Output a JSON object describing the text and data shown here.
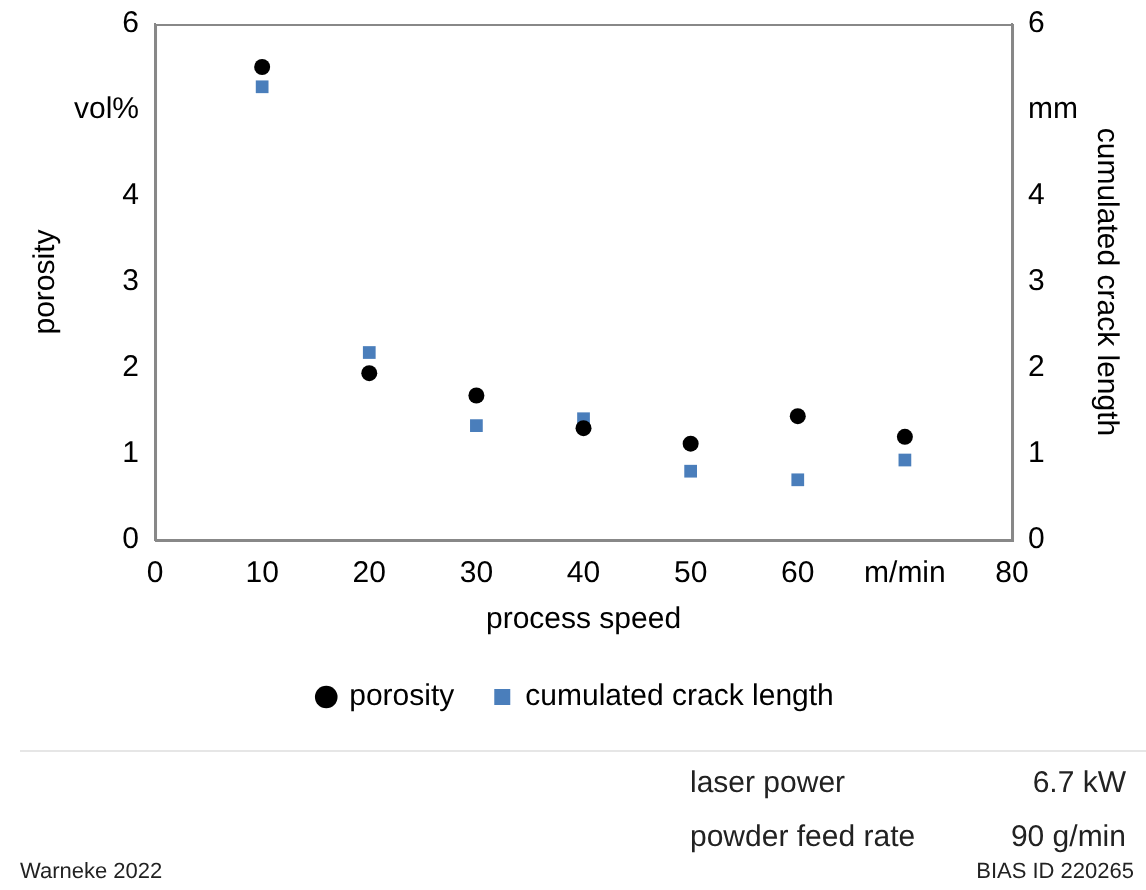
{
  "chart_data": {
    "type": "scatter",
    "xlabel": "process speed",
    "ylabel": "porosity",
    "y2label": "cumulated crack length",
    "x": [
      10,
      20,
      30,
      40,
      50,
      60,
      70
    ],
    "series": [
      {
        "name": "porosity",
        "color": "#000000",
        "marker": "circle",
        "values": [
          5.5,
          1.94,
          1.68,
          1.3,
          1.12,
          1.44,
          1.2
        ]
      },
      {
        "name": "cumulated crack length",
        "color": "#4a7ebb",
        "marker": "square",
        "axis": "y2",
        "values": [
          5.27,
          2.18,
          1.33,
          1.41,
          0.8,
          0.7,
          0.93
        ]
      }
    ],
    "xlim": [
      0,
      80
    ],
    "xticks": [
      0,
      10,
      20,
      30,
      40,
      50,
      60,
      {
        "value": 70,
        "label": "m/min"
      },
      80
    ],
    "ylim": [
      0,
      6
    ],
    "yticks": [
      0,
      1,
      2,
      3,
      4,
      {
        "value": 5,
        "label": "vol%"
      },
      6
    ],
    "y2lim": [
      0,
      6
    ],
    "y2ticks": [
      0,
      1,
      2,
      3,
      4,
      {
        "value": 5,
        "label": "mm"
      },
      6
    ],
    "legend": "bottom",
    "grid": false,
    "annotations": [
      "laser power",
      "6.7 kW",
      "powder feed rate",
      "90 g/min",
      "Warneke 2022",
      "BIAS ID 220265"
    ]
  }
}
